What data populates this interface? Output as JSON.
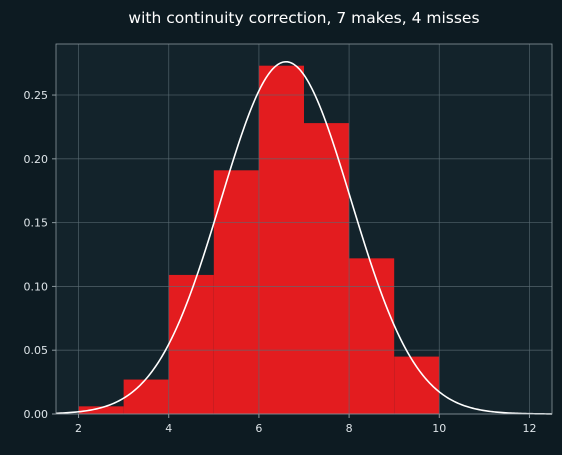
{
  "chart_data": {
    "type": "bar",
    "title": "with continuity correction, 7 makes, 4 misses",
    "xlabel": "",
    "ylabel": "",
    "xlim": [
      1.5,
      12.5
    ],
    "ylim": [
      0,
      0.29
    ],
    "xticks": [
      2,
      4,
      6,
      8,
      10,
      12
    ],
    "xtick_labels": [
      "2",
      "4",
      "6",
      "8",
      "10",
      "12"
    ],
    "yticks": [
      0,
      0.05,
      0.1,
      0.15,
      0.2,
      0.25
    ],
    "ytick_labels": [
      "0.00",
      "0.05",
      "0.10",
      "0.15",
      "0.20",
      "0.25"
    ],
    "grid": true,
    "bars": [
      {
        "x0": 2,
        "x1": 3,
        "value": 0.006
      },
      {
        "x0": 3,
        "x1": 4,
        "value": 0.027
      },
      {
        "x0": 4,
        "x1": 5,
        "value": 0.109
      },
      {
        "x0": 5,
        "x1": 6,
        "value": 0.191
      },
      {
        "x0": 6,
        "x1": 7,
        "value": 0.273
      },
      {
        "x0": 7,
        "x1": 8,
        "value": 0.228
      },
      {
        "x0": 8,
        "x1": 9,
        "value": 0.122
      },
      {
        "x0": 9,
        "x1": 10,
        "value": 0.045
      }
    ],
    "curve": {
      "type": "normal-pdf",
      "mean": 6.6,
      "sd": 1.445,
      "x_range": [
        1.5,
        12.5
      ]
    },
    "colors": {
      "background": "#0d1b22",
      "plot_background": "#13232b",
      "bars": "#e31c1f",
      "curve": "#ffffff",
      "grid": "#5b6c74",
      "axes": "#8a979d",
      "text": "#ffffff"
    }
  }
}
